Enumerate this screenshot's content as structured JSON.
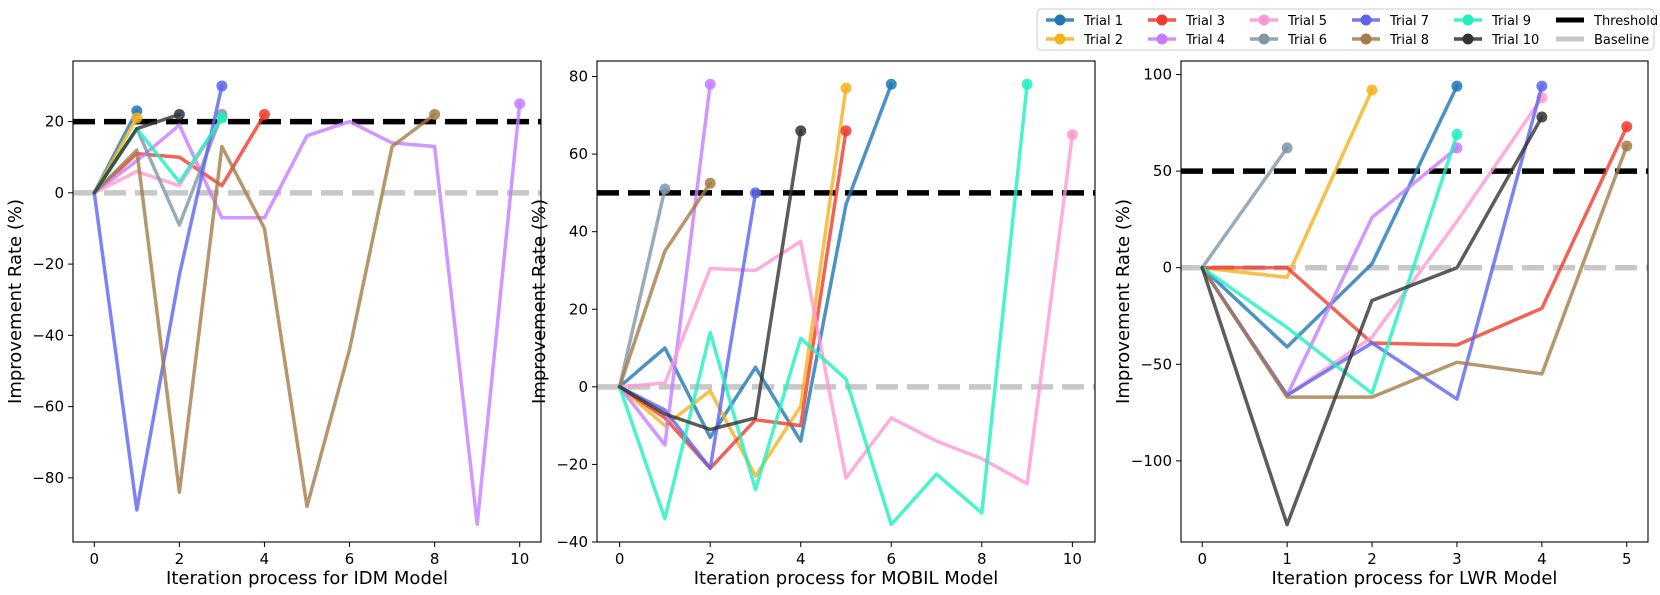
{
  "legend": {
    "items": [
      {
        "label": "Trial 1",
        "color": "#1f77b4",
        "kind": "marker"
      },
      {
        "label": "Trial 2",
        "color": "#f5b21c",
        "kind": "marker"
      },
      {
        "label": "Trial 3",
        "color": "#ef3b2c",
        "kind": "marker"
      },
      {
        "label": "Trial 4",
        "color": "#c77cff",
        "kind": "marker"
      },
      {
        "label": "Trial 5",
        "color": "#ff99d5",
        "kind": "marker"
      },
      {
        "label": "Trial 6",
        "color": "#7f96a8",
        "kind": "marker"
      },
      {
        "label": "Trial 7",
        "color": "#5c64ee",
        "kind": "marker"
      },
      {
        "label": "Trial 8",
        "color": "#a47c48",
        "kind": "marker"
      },
      {
        "label": "Trial 9",
        "color": "#1ef0c0",
        "kind": "marker"
      },
      {
        "label": "Trial 10",
        "color": "#333333",
        "kind": "marker"
      },
      {
        "label": "Threshold",
        "color": "#000000",
        "kind": "dash"
      },
      {
        "label": "Baseline",
        "color": "#c8c8c8",
        "kind": "dash"
      }
    ],
    "placement": "top-right"
  },
  "chart_data": [
    {
      "type": "line",
      "title": "",
      "xlabel": "Iteration process for IDM Model",
      "ylabel": "Improvement Rate (%)",
      "xlim": [
        -0.5,
        10.5
      ],
      "ylim": [
        -98,
        37
      ],
      "xticks": [
        0,
        2,
        4,
        6,
        8,
        10
      ],
      "yticks": [
        -80,
        -60,
        -40,
        -20,
        0,
        20
      ],
      "threshold": 20,
      "baseline": 0,
      "series": [
        {
          "name": "Trial 1",
          "x": [
            0,
            1
          ],
          "y": [
            0,
            23
          ]
        },
        {
          "name": "Trial 2",
          "x": [
            0,
            1
          ],
          "y": [
            0,
            21
          ]
        },
        {
          "name": "Trial 3",
          "x": [
            0,
            1,
            2,
            3,
            4
          ],
          "y": [
            0,
            11,
            10,
            2,
            22
          ]
        },
        {
          "name": "Trial 4",
          "x": [
            0,
            1,
            2,
            3,
            4,
            5,
            6,
            7,
            8,
            9,
            10
          ],
          "y": [
            0,
            9,
            19,
            -7,
            -7,
            16,
            20,
            14,
            13,
            -93,
            25
          ]
        },
        {
          "name": "Trial 5",
          "x": [
            0,
            1,
            2,
            3
          ],
          "y": [
            0,
            6,
            2,
            21
          ]
        },
        {
          "name": "Trial 6",
          "x": [
            0,
            1,
            2,
            3
          ],
          "y": [
            0,
            18,
            -9,
            22
          ]
        },
        {
          "name": "Trial 7",
          "x": [
            0,
            1,
            2,
            3
          ],
          "y": [
            0,
            -89,
            -23,
            30
          ]
        },
        {
          "name": "Trial 8",
          "x": [
            0,
            1,
            2,
            3,
            4,
            5,
            6,
            7,
            8
          ],
          "y": [
            0,
            12,
            -84,
            13,
            -10,
            -88,
            -44,
            13,
            22
          ]
        },
        {
          "name": "Trial 9",
          "x": [
            0,
            1,
            2,
            3
          ],
          "y": [
            0,
            18,
            3,
            21
          ]
        },
        {
          "name": "Trial 10",
          "x": [
            0,
            1,
            2
          ],
          "y": [
            0,
            18,
            22
          ]
        }
      ]
    },
    {
      "type": "line",
      "title": "",
      "xlabel": "Iteration process for MOBIL Model",
      "ylabel": "Improvement Rate (%)",
      "xlim": [
        -0.5,
        10.5
      ],
      "ylim": [
        -40,
        84
      ],
      "xticks": [
        0,
        2,
        4,
        6,
        8,
        10
      ],
      "yticks": [
        -40,
        -20,
        0,
        20,
        40,
        60,
        80
      ],
      "threshold": 50,
      "baseline": 0,
      "series": [
        {
          "name": "Trial 1",
          "x": [
            0,
            1,
            2,
            3,
            4,
            5,
            6
          ],
          "y": [
            0,
            10,
            -13,
            5,
            -14,
            47,
            78
          ]
        },
        {
          "name": "Trial 2",
          "x": [
            0,
            1,
            2,
            3,
            4,
            5
          ],
          "y": [
            0,
            -10,
            -1,
            -23,
            -5,
            77
          ]
        },
        {
          "name": "Trial 3",
          "x": [
            0,
            1,
            2,
            3,
            4,
            5
          ],
          "y": [
            0,
            -8,
            -21,
            -8.5,
            -10,
            66
          ]
        },
        {
          "name": "Trial 4",
          "x": [
            0,
            1,
            2
          ],
          "y": [
            0,
            -15,
            78
          ]
        },
        {
          "name": "Trial 5",
          "x": [
            0,
            1,
            2,
            3,
            4,
            5,
            6,
            7,
            8,
            9,
            10
          ],
          "y": [
            0,
            1,
            30.5,
            30,
            37.5,
            -23.5,
            -8,
            -14,
            -18.5,
            -25,
            65
          ]
        },
        {
          "name": "Trial 6",
          "x": [
            0,
            1
          ],
          "y": [
            0,
            51
          ]
        },
        {
          "name": "Trial 7",
          "x": [
            0,
            1,
            2,
            3
          ],
          "y": [
            0,
            -6,
            -21,
            50
          ]
        },
        {
          "name": "Trial 8",
          "x": [
            0,
            1,
            2
          ],
          "y": [
            0,
            35,
            52.5
          ]
        },
        {
          "name": "Trial 9",
          "x": [
            0,
            1,
            2,
            3,
            4,
            5,
            6,
            7,
            8,
            9
          ],
          "y": [
            0,
            -34,
            14,
            -26.5,
            12.5,
            2,
            -35.5,
            -22.5,
            -32.5,
            78
          ]
        },
        {
          "name": "Trial 10",
          "x": [
            0,
            1,
            2,
            3,
            4
          ],
          "y": [
            0,
            -7,
            -11,
            -8,
            66
          ]
        }
      ]
    },
    {
      "type": "line",
      "title": "",
      "xlabel": "Iteration process for LWR Model",
      "ylabel": "Improvement Rate (%)",
      "xlim": [
        -0.25,
        5.25
      ],
      "ylim": [
        -142,
        107
      ],
      "xticks": [
        0,
        1,
        2,
        3,
        4,
        5
      ],
      "yticks": [
        -100,
        -50,
        0,
        50,
        100
      ],
      "threshold": 50,
      "baseline": 0,
      "series": [
        {
          "name": "Trial 1",
          "x": [
            0,
            1,
            2,
            3
          ],
          "y": [
            0,
            -41,
            2,
            94
          ]
        },
        {
          "name": "Trial 2",
          "x": [
            0,
            1,
            2
          ],
          "y": [
            0,
            -5,
            92
          ]
        },
        {
          "name": "Trial 3",
          "x": [
            0,
            1,
            2,
            3,
            4,
            5
          ],
          "y": [
            0,
            0,
            -39,
            -40,
            -21,
            73
          ]
        },
        {
          "name": "Trial 4",
          "x": [
            0,
            1,
            2,
            3
          ],
          "y": [
            0,
            -66,
            26,
            62
          ]
        },
        {
          "name": "Trial 5",
          "x": [
            0,
            1,
            2,
            3,
            4
          ],
          "y": [
            0,
            -66,
            -36,
            24,
            88
          ]
        },
        {
          "name": "Trial 6",
          "x": [
            0,
            1
          ],
          "y": [
            0,
            62
          ]
        },
        {
          "name": "Trial 7",
          "x": [
            0,
            1,
            2,
            3,
            4
          ],
          "y": [
            0,
            -66,
            -39,
            -68,
            94
          ]
        },
        {
          "name": "Trial 8",
          "x": [
            0,
            1,
            2,
            3,
            4,
            5
          ],
          "y": [
            0,
            -67,
            -67,
            -49,
            -55,
            63
          ]
        },
        {
          "name": "Trial 9",
          "x": [
            0,
            1,
            2,
            3
          ],
          "y": [
            0,
            -31,
            -65,
            69
          ]
        },
        {
          "name": "Trial 10",
          "x": [
            0,
            1,
            2,
            3,
            4
          ],
          "y": [
            0,
            -133,
            -17,
            0,
            78
          ]
        }
      ]
    }
  ]
}
